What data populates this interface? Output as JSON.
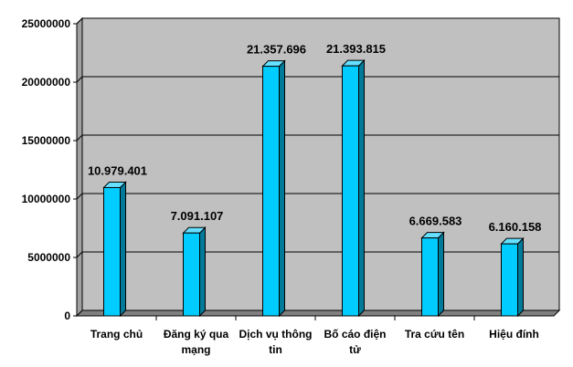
{
  "chart_data": {
    "type": "bar",
    "categories": [
      [
        "Trang chủ"
      ],
      [
        "Đăng ký qua",
        "mạng"
      ],
      [
        "Dịch vụ thông",
        "tin"
      ],
      [
        "Bố cáo điện",
        "tử"
      ],
      [
        "Tra cứu tên"
      ],
      [
        "Hiệu đính"
      ]
    ],
    "values": [
      10979401,
      7091107,
      21357696,
      21393815,
      6669583,
      6160158
    ],
    "data_labels": [
      "10.979.401",
      "7.091.107",
      "21.357.696",
      "21.393.815",
      "6.669.583",
      "6.160.158"
    ],
    "yticks": [
      "0",
      "5000000",
      "10000000",
      "15000000",
      "20000000",
      "25000000"
    ],
    "ylim": [
      0,
      25000000
    ],
    "grid": true,
    "legend": "none",
    "colors": {
      "bar_front": "#00CCFF",
      "bar_side": "#007A99",
      "bar_top": "#66E0FF",
      "wall": "#C0C0C0",
      "floor": "#808080"
    }
  }
}
